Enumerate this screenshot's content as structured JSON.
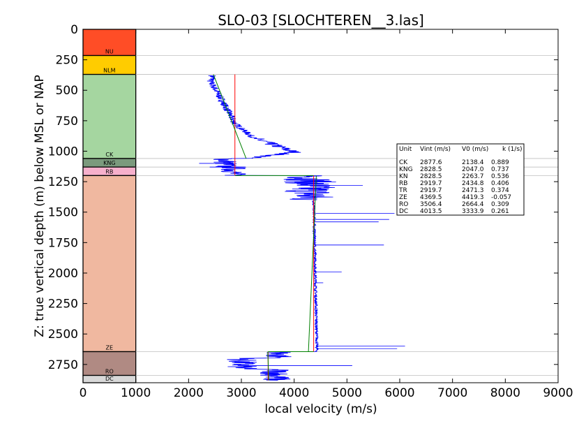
{
  "chart_data": {
    "type": "line",
    "title": "SLO-03 [SLOCHTEREN__3.las]",
    "xlabel": "local velocity (m/s)",
    "ylabel": "Z: true vertical depth (m) below MSL or NAP",
    "xlim": [
      0,
      9000
    ],
    "ylim": [
      2900,
      0
    ],
    "x_ticks": [
      "0",
      "1000",
      "2000",
      "3000",
      "4000",
      "5000",
      "6000",
      "7000",
      "8000",
      "9000"
    ],
    "y_ticks": [
      "0",
      "250",
      "500",
      "750",
      "1000",
      "1250",
      "1500",
      "1750",
      "2000",
      "2250",
      "2500",
      "2750"
    ],
    "colors": {
      "measured": "#0000ff",
      "interval": "#ff0000",
      "fit": "#008000",
      "boundary": "#bfbfbf"
    },
    "units": [
      {
        "name": "NU",
        "top": 0,
        "base": 215,
        "color": "#ff4d26"
      },
      {
        "name": "NLM",
        "top": 215,
        "base": 370,
        "color": "#ffcc00"
      },
      {
        "name": "CK",
        "top": 370,
        "base": 1060,
        "color": "#a5d6a0"
      },
      {
        "name": "KNG",
        "top": 1060,
        "base": 1130,
        "color": "#7b9a7d"
      },
      {
        "name": "RB",
        "top": 1130,
        "base": 1200,
        "color": "#f7b0cc"
      },
      {
        "name": "ZE",
        "top": 1200,
        "base": 2645,
        "color": "#f0b8a0"
      },
      {
        "name": "RO",
        "top": 2645,
        "base": 2840,
        "color": "#b08a83"
      },
      {
        "name": "DC",
        "top": 2840,
        "base": 2900,
        "color": "#d8d8d8"
      }
    ],
    "interval_velocity_segments": [
      {
        "unit": "CK",
        "vint": 2877.6,
        "top": 370,
        "base": 1200
      },
      {
        "unit": "ZE",
        "vint": 4369.5,
        "top": 1200,
        "base": 2645
      },
      {
        "unit": "RO",
        "vint": 3506.4,
        "top": 2645,
        "base": 2880
      }
    ],
    "fit_segments": [
      {
        "unit": "CK",
        "x": [
          2470,
          3090
        ],
        "y": [
          370,
          1060
        ]
      },
      {
        "unit": "ZE",
        "x": [
          4420,
          4270
        ],
        "y": [
          1200,
          2645
        ]
      },
      {
        "unit": "RO",
        "x": [
          3500,
          3520
        ],
        "y": [
          2645,
          2880
        ]
      }
    ],
    "table": {
      "header": [
        "Unit",
        "Vint (m/s)",
        "V0 (m/s)",
        "k (1/s)"
      ],
      "rows": [
        [
          "CK",
          "2877.6",
          "2138.4",
          "0.889"
        ],
        [
          "KNG",
          "2828.5",
          "2047.0",
          "0.737"
        ],
        [
          "KN",
          "2828.5",
          "2263.7",
          "0.536"
        ],
        [
          "RB",
          "2919.7",
          "2434.8",
          "0.406"
        ],
        [
          "TR",
          "2919.7",
          "2471.3",
          "0.374"
        ],
        [
          "ZE",
          "4369.5",
          "4419.3",
          "-0.057"
        ],
        [
          "RO",
          "3506.4",
          "2664.4",
          "0.309"
        ],
        [
          "DC",
          "4013.5",
          "3333.9",
          "0.261"
        ]
      ]
    }
  }
}
